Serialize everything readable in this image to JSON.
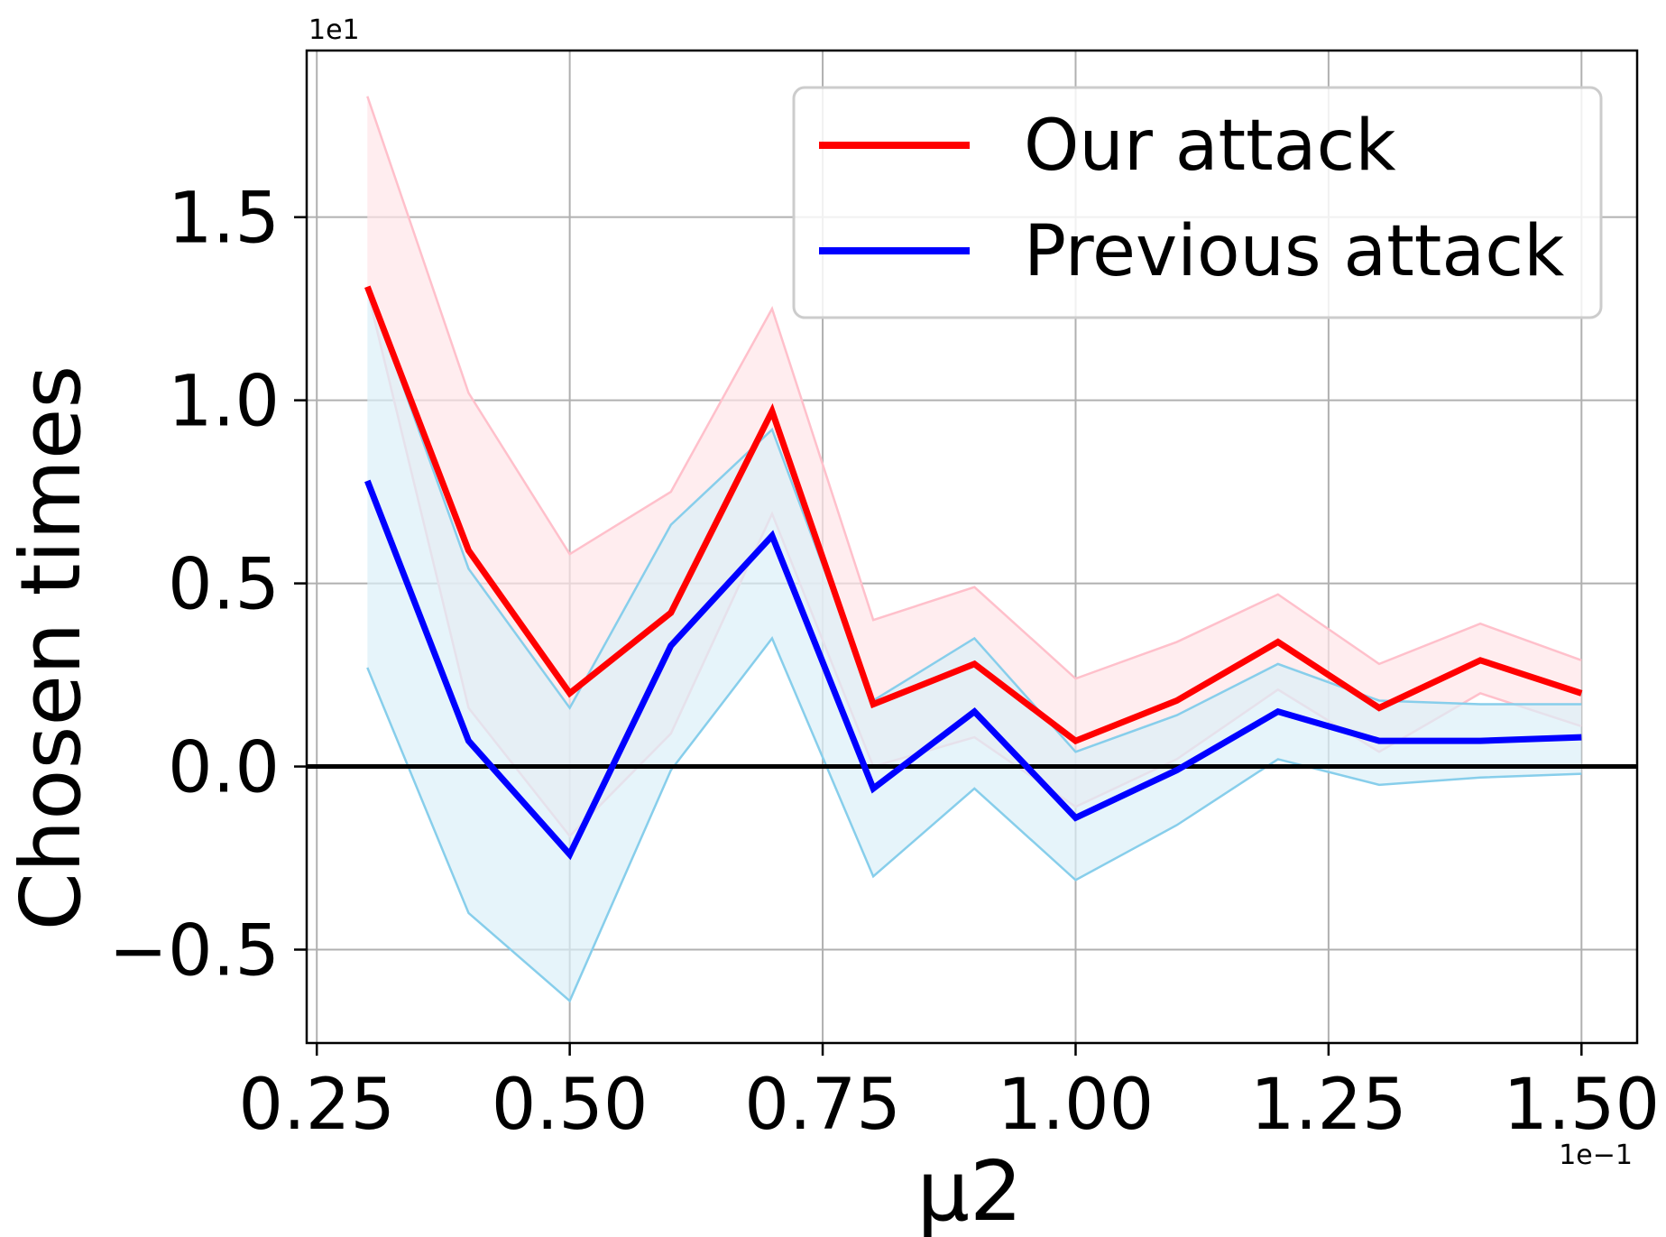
{
  "chart_data": {
    "type": "line",
    "xlabel": "μ2",
    "ylabel": "Chosen times",
    "x_offset_label": "1e−1",
    "y_offset_label": "1e1",
    "xlim": [
      0.24,
      1.555
    ],
    "ylim": [
      -0.755,
      1.955
    ],
    "x_ticks": [
      0.25,
      0.5,
      0.75,
      1.0,
      1.25,
      1.5
    ],
    "x_tick_labels": [
      "0.25",
      "0.50",
      "0.75",
      "1.00",
      "1.25",
      "1.50"
    ],
    "y_ticks": [
      -0.5,
      0.0,
      0.5,
      1.0,
      1.5
    ],
    "y_tick_labels": [
      "−0.5",
      "0.0",
      "0.5",
      "1.0",
      "1.5"
    ],
    "grid": true,
    "reference_line_y": 0.0,
    "legend_position": "top-right",
    "x": [
      0.3,
      0.4,
      0.5,
      0.6,
      0.7,
      0.8,
      0.9,
      1.0,
      1.1,
      1.2,
      1.3,
      1.4,
      1.5
    ],
    "series": [
      {
        "name": "Our attack",
        "color": "#ff0000",
        "band_fill": "#ffe6e8",
        "band_edge": "#ffc0cb",
        "values": [
          1.31,
          0.59,
          0.2,
          0.42,
          0.97,
          0.17,
          0.28,
          0.07,
          0.18,
          0.34,
          0.16,
          0.29,
          0.2
        ],
        "upper": [
          1.83,
          1.02,
          0.58,
          0.75,
          1.25,
          0.4,
          0.49,
          0.24,
          0.34,
          0.47,
          0.28,
          0.39,
          0.29
        ],
        "lower": [
          1.3,
          0.16,
          -0.19,
          0.09,
          0.69,
          0.0,
          0.08,
          -0.11,
          0.02,
          0.21,
          0.04,
          0.2,
          0.11
        ]
      },
      {
        "name": "Previous attack",
        "color": "#0000ff",
        "band_fill": "#dcf0f8",
        "band_edge": "#87ceeb",
        "values": [
          0.78,
          0.07,
          -0.24,
          0.33,
          0.63,
          -0.06,
          0.15,
          -0.14,
          -0.01,
          0.15,
          0.07,
          0.07,
          0.08
        ],
        "upper": [
          1.31,
          0.54,
          0.16,
          0.66,
          0.92,
          0.18,
          0.35,
          0.04,
          0.14,
          0.28,
          0.18,
          0.17,
          0.17
        ],
        "lower": [
          0.27,
          -0.4,
          -0.64,
          -0.01,
          0.35,
          -0.3,
          -0.06,
          -0.31,
          -0.16,
          0.02,
          -0.05,
          -0.03,
          -0.02
        ]
      }
    ]
  }
}
